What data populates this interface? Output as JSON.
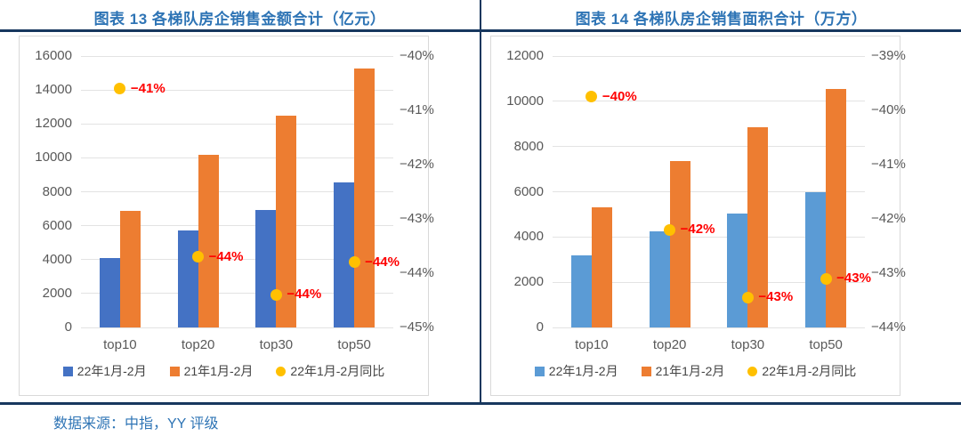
{
  "footer": {
    "source_label": "数据来源：中指，YY 评级"
  },
  "colors": {
    "accent_navy": "#17375E",
    "title_blue": "#2E74B5",
    "bar_blue_dark": "#4472C4",
    "bar_blue_light": "#5B9BD5",
    "bar_orange": "#ED7D31",
    "marker_yellow": "#FFC000",
    "label_red": "#FF0000",
    "axis_gray": "#595959",
    "grid_gray": "#E3E3E3"
  },
  "chart_data": [
    {
      "type": "bar",
      "title": "图表 13 各梯队房企销售金额合计（亿元）",
      "categories": [
        "top10",
        "top20",
        "top30",
        "top50"
      ],
      "series": [
        {
          "key": "amount-22",
          "name": "22年1月-2月",
          "kind": "bar",
          "axis": "left",
          "color": "#4472C4",
          "values": [
            4100,
            5700,
            6900,
            8550
          ]
        },
        {
          "key": "amount-21",
          "name": "21年1月-2月",
          "kind": "bar",
          "axis": "left",
          "color": "#ED7D31",
          "values": [
            6850,
            10200,
            12500,
            15250
          ]
        },
        {
          "key": "yoy-22",
          "name": "22年1月-2月同比",
          "kind": "scatter",
          "axis": "right",
          "color": "#FFC000",
          "values": [
            -40.6,
            -43.7,
            -44.4,
            -43.8
          ],
          "point_labels": [
            "−41%",
            "−44%",
            "−44%",
            "−44%"
          ],
          "label_color": "#FF0000"
        }
      ],
      "left_axis": {
        "min": 0,
        "max": 16000,
        "step": 2000,
        "ticks": [
          "16000",
          "14000",
          "12000",
          "10000",
          "8000",
          "6000",
          "4000",
          "2000",
          "0"
        ]
      },
      "right_axis": {
        "top": -40,
        "bottom": -45,
        "step": 1,
        "ticks": [
          "−40%",
          "−41%",
          "−42%",
          "−43%",
          "−44%",
          "−45%"
        ]
      },
      "grid": true,
      "legend_position": "bottom"
    },
    {
      "type": "bar",
      "title": "图表 14 各梯队房企销售面积合计（万方）",
      "categories": [
        "top10",
        "top20",
        "top30",
        "top50"
      ],
      "series": [
        {
          "key": "area-22",
          "name": "22年1月-2月",
          "kind": "bar",
          "axis": "left",
          "color": "#5B9BD5",
          "values": [
            3200,
            4250,
            5050,
            6000
          ]
        },
        {
          "key": "area-21",
          "name": "21年1月-2月",
          "kind": "bar",
          "axis": "left",
          "color": "#ED7D31",
          "values": [
            5300,
            7350,
            8850,
            10550
          ]
        },
        {
          "key": "yoy-22",
          "name": "22年1月-2月同比",
          "kind": "scatter",
          "axis": "right",
          "color": "#FFC000",
          "values": [
            -39.75,
            -42.2,
            -43.45,
            -43.1
          ],
          "point_labels": [
            "−40%",
            "−42%",
            "−43%",
            "−43%"
          ],
          "label_color": "#FF0000"
        }
      ],
      "left_axis": {
        "min": 0,
        "max": 12000,
        "step": 2000,
        "ticks": [
          "12000",
          "10000",
          "8000",
          "6000",
          "4000",
          "2000",
          "0"
        ]
      },
      "right_axis": {
        "top": -39,
        "bottom": -44,
        "step": 1,
        "ticks": [
          "−39%",
          "−40%",
          "−41%",
          "−42%",
          "−43%",
          "−44%"
        ]
      },
      "grid": true,
      "legend_position": "bottom"
    }
  ]
}
